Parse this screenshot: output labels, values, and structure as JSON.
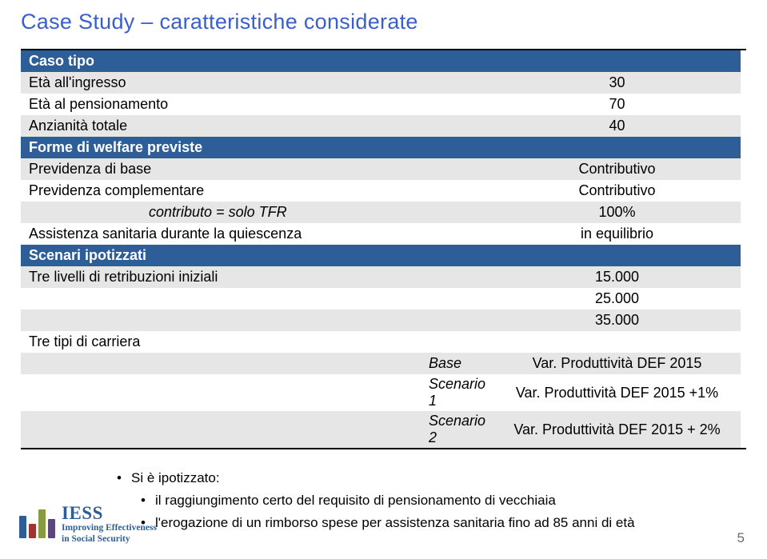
{
  "title": "Case Study – caratteristiche considerate",
  "headers": {
    "caso_tipo": "Caso tipo",
    "forme_welfare": "Forme di welfare previste",
    "scenari": "Scenari ipotizzati"
  },
  "rows": {
    "eta_ingresso_l": "Età all'ingresso",
    "eta_ingresso_v": "30",
    "eta_pens_l": "Età al pensionamento",
    "eta_pens_v": "70",
    "anz_l": "Anzianità totale",
    "anz_v": "40",
    "prev_base_l": "Previdenza di base",
    "prev_base_v": "Contributivo",
    "prev_comp_l": "Previdenza complementare",
    "prev_comp_v": "Contributivo",
    "contrib_l": "contributo = solo TFR",
    "contrib_v": "100%",
    "assist_l": "Assistenza sanitaria durante la quiescenza",
    "assist_v": "in equilibrio",
    "livelli_l": "Tre livelli di retribuzioni iniziali",
    "livelli_v1": "15.000",
    "livelli_v2": "25.000",
    "livelli_v3": "35.000",
    "carriera_l": "Tre tipi di carriera",
    "base_l": "Base",
    "base_v": "Var. Produttività DEF 2015",
    "s1_l": "Scenario 1",
    "s1_v": "Var. Produttività DEF 2015 +1%",
    "s2_l": "Scenario 2",
    "s2_v": "Var. Produttività DEF 2015 + 2%"
  },
  "bullets": {
    "b1": "Si è ipotizzato:",
    "b2": "il raggiungimento certo del requisito di pensionamento di vecchiaia",
    "b3": "l'erogazione di un rimborso spese per assistenza sanitaria fino ad 85 anni di età"
  },
  "logo": {
    "title": "IESS",
    "sub1": "Improving Effectiveness",
    "sub2": "in Social Security",
    "bar_colors": [
      "#2e5e97",
      "#a3332f",
      "#889c3f",
      "#5d477a"
    ],
    "bar_heights": [
      28,
      18,
      36,
      24
    ]
  },
  "page_num": "5",
  "colors": {
    "title": "#3a5fcd",
    "header_bg": "#2e5e97",
    "alt_bg": "#e6e6e6"
  }
}
